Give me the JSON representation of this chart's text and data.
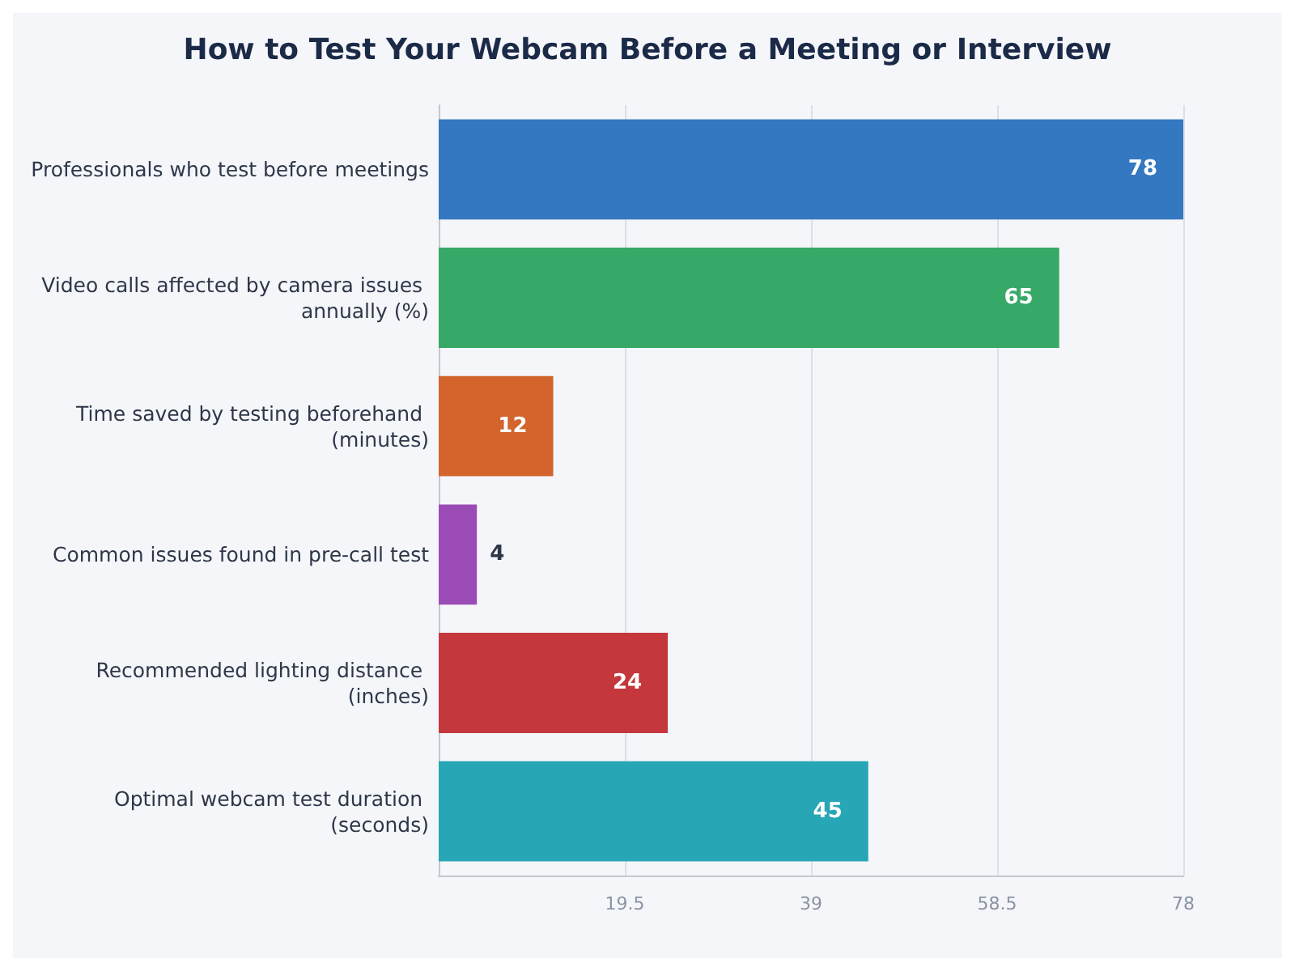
{
  "chart_data": {
    "type": "bar",
    "orientation": "horizontal",
    "title": "How to Test Your Webcam Before a Meeting or Interview",
    "categories": [
      "Professionals who test before meetings",
      "Video calls affected by camera issues annually (%)",
      "Time saved by testing beforehand (minutes)",
      "Common issues found in pre-call test",
      "Recommended lighting distance (inches)",
      "Optimal webcam test duration (seconds)"
    ],
    "values": [
      78,
      65,
      12,
      4,
      24,
      45
    ],
    "colors": [
      "#3478c1",
      "#36a968",
      "#d2642c",
      "#9a4bb5",
      "#c4373d",
      "#27a6b5"
    ],
    "xlim": [
      0,
      78
    ],
    "xticks": [
      19.5,
      39,
      58.5,
      78
    ],
    "grid": "x",
    "data_labels": true
  }
}
